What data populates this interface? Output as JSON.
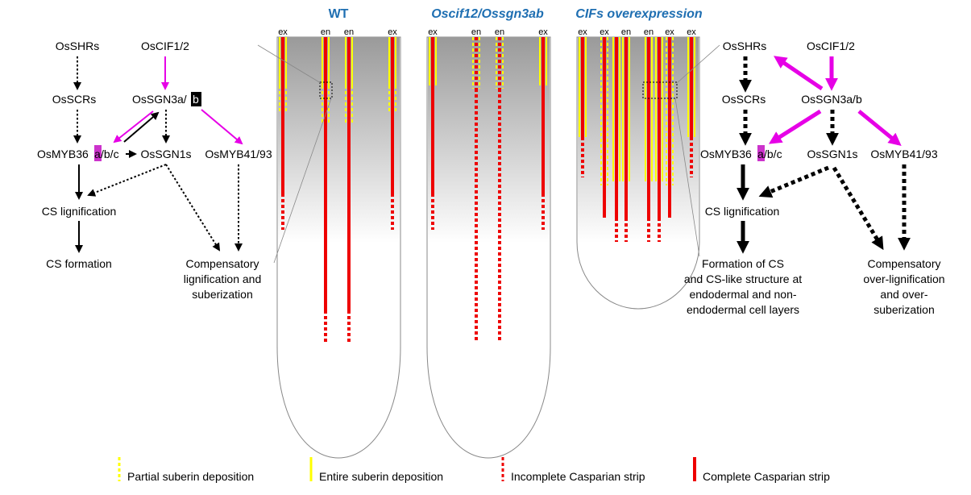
{
  "panels": {
    "wt": {
      "title": "WT",
      "lanes": [
        "ex",
        "en",
        "en",
        "ex"
      ]
    },
    "mutant": {
      "title": "Oscif12/Ossgn3ab",
      "lanes": [
        "ex",
        "en",
        "en",
        "ex"
      ]
    },
    "overexp": {
      "title": "CIFs overexpression",
      "lanes": [
        "ex",
        "ex",
        "en",
        "en",
        "ex",
        "ex"
      ]
    }
  },
  "left_pathway": {
    "osshrs": "OsSHRs",
    "oscif": "OsCIF1/2",
    "osscrs": "OsSCRs",
    "ossgn3_pre": "OsSGN3a/",
    "ossgn3_b": "b",
    "osmyb36_pre": "OsMYB36",
    "osmyb36_a": "a",
    "osmyb36_post": "/b/c",
    "ossgn1s": "OsSGN1s",
    "osmyb41": "OsMYB41/93",
    "cs_lig": "CS lignification",
    "cs_form": "CS formation",
    "comp_line1": "Compensatory",
    "comp_line2": "lignification and",
    "comp_line3": "suberization"
  },
  "right_pathway": {
    "osshrs": "OsSHRs",
    "oscif": "OsCIF1/2",
    "osscrs": "OsSCRs",
    "ossgn3": "OsSGN3a/b",
    "osmyb36_pre": "OsMYB36",
    "osmyb36_a": "a",
    "osmyb36_post": "/b/c",
    "ossgn1s": "OsSGN1s",
    "osmyb41": "OsMYB41/93",
    "cs_lig": "CS lignification",
    "form_line1": "Formation of CS",
    "form_line2": "and CS-like structure at",
    "form_line3": "endodermal and non-",
    "form_line4": "endodermal cell layers",
    "comp_line1": "Compensatory",
    "comp_line2": "over-lignification",
    "comp_line3": "and over-",
    "comp_line4": "suberization"
  },
  "legend": [
    {
      "label": "Partial suberin deposition",
      "style": "partial-suberin"
    },
    {
      "label": "Entire suberin deposition",
      "style": "entire-suberin"
    },
    {
      "label": "Incomplete Casparian strip",
      "style": "incomplete-cs"
    },
    {
      "label": "Complete Casparian strip",
      "style": "complete-cs"
    }
  ],
  "colors": {
    "title_blue": "#1f6fb2",
    "magenta": "#e600e6",
    "red": "#ee0000",
    "yellow": "#ffff00",
    "highlight_box": "#000000",
    "highlight_purple": "#cc33cc"
  }
}
